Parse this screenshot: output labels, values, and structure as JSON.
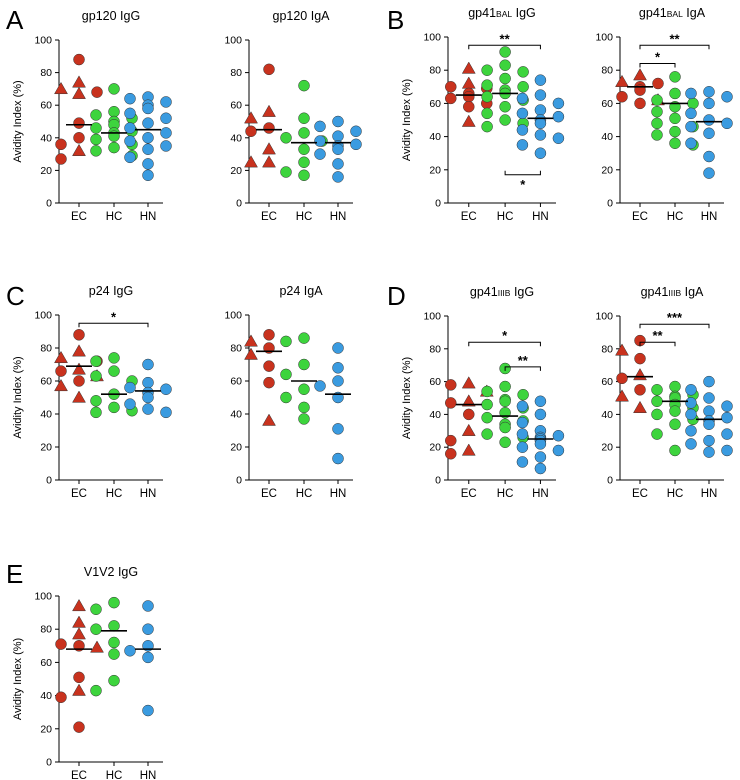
{
  "colors": {
    "EC": "#c8321e",
    "HC": "#3dd43d",
    "HN": "#3a9be0",
    "axis": "#000000",
    "median": "#000000"
  },
  "chart_data": [
    {
      "type": "scatter",
      "panel": "A",
      "title": "gp120 IgG",
      "ylabel": "Avidity Index (%)",
      "ylim": [
        0,
        100
      ],
      "yticks": [
        0,
        20,
        40,
        60,
        80,
        100
      ],
      "categories": [
        "EC",
        "HC",
        "HN"
      ],
      "medians": [
        48,
        43,
        45
      ],
      "groups": [
        {
          "name": "EC",
          "circles": [
            88,
            68,
            49,
            40,
            36,
            27
          ],
          "triangles": [
            74,
            70,
            67,
            32
          ]
        },
        {
          "name": "HC",
          "circles": [
            70,
            56,
            54,
            52,
            50,
            48,
            46,
            44,
            43,
            41,
            39,
            36,
            34,
            32,
            29
          ],
          "triangles": []
        },
        {
          "name": "HN",
          "circles": [
            65,
            64,
            62,
            60,
            58,
            55,
            52,
            49,
            46,
            43,
            40,
            38,
            35,
            33,
            28,
            24,
            17
          ],
          "triangles": []
        }
      ],
      "brackets": []
    },
    {
      "type": "scatter",
      "panel": "A",
      "title": "gp120 IgA",
      "ylabel": "",
      "ylim": [
        0,
        100
      ],
      "yticks": [
        0,
        20,
        40,
        60,
        80,
        100
      ],
      "categories": [
        "EC",
        "HC",
        "HN"
      ],
      "medians": [
        45,
        37,
        37
      ],
      "groups": [
        {
          "name": "EC",
          "circles": [
            82,
            46,
            44
          ],
          "triangles": [
            56,
            52,
            33,
            25,
            25
          ]
        },
        {
          "name": "HC",
          "circles": [
            72,
            52,
            43,
            40,
            38,
            33,
            25,
            19,
            17
          ],
          "triangles": []
        },
        {
          "name": "HN",
          "circles": [
            50,
            47,
            44,
            41,
            38,
            36,
            35,
            33,
            30,
            24,
            16
          ],
          "triangles": []
        }
      ],
      "brackets": []
    },
    {
      "type": "scatter",
      "panel": "B",
      "title": "gp41",
      "title_sub": "BAL",
      "title_suffix": " IgG",
      "ylabel": "Avidity Index (%)",
      "ylim": [
        0,
        100
      ],
      "yticks": [
        0,
        20,
        40,
        60,
        80,
        100
      ],
      "categories": [
        "EC",
        "HC",
        "HN"
      ],
      "medians": [
        65,
        66,
        51
      ],
      "groups": [
        {
          "name": "EC",
          "circles": [
            70,
            69,
            66,
            64,
            63,
            60,
            58
          ],
          "triangles": [
            81,
            72,
            49
          ]
        },
        {
          "name": "HC",
          "circles": [
            91,
            83,
            80,
            79,
            75,
            71,
            70,
            68,
            66,
            64,
            62,
            58,
            54,
            50,
            48,
            46
          ],
          "triangles": []
        },
        {
          "name": "HN",
          "circles": [
            74,
            65,
            63,
            60,
            56,
            54,
            52,
            50,
            48,
            44,
            41,
            39,
            35,
            30
          ],
          "triangles": []
        }
      ],
      "brackets": [
        {
          "from": "EC",
          "to": "HN",
          "label": "**",
          "y": 95,
          "below": false
        },
        {
          "from": "HC",
          "to": "HN",
          "label": "*",
          "y": 17,
          "below": true
        }
      ]
    },
    {
      "type": "scatter",
      "panel": "B",
      "title": "gp41",
      "title_sub": "BAL",
      "title_suffix": " IgA",
      "ylabel": "",
      "ylim": [
        0,
        100
      ],
      "yticks": [
        0,
        20,
        40,
        60,
        80,
        100
      ],
      "categories": [
        "EC",
        "HC",
        "HN"
      ],
      "medians": [
        70,
        60,
        49
      ],
      "groups": [
        {
          "name": "EC",
          "circles": [
            72,
            70,
            68,
            64,
            60
          ],
          "triangles": [
            77,
            73,
            62
          ]
        },
        {
          "name": "HC",
          "circles": [
            76,
            66,
            62,
            60,
            58,
            55,
            51,
            48,
            46,
            43,
            41,
            36,
            35
          ],
          "triangles": []
        },
        {
          "name": "HN",
          "circles": [
            67,
            66,
            64,
            60,
            54,
            50,
            48,
            46,
            42,
            36,
            28,
            18
          ],
          "triangles": []
        }
      ],
      "brackets": [
        {
          "from": "EC",
          "to": "HN",
          "label": "**",
          "y": 95,
          "below": false
        },
        {
          "from": "EC",
          "to": "HC",
          "label": "*",
          "y": 84,
          "below": false
        }
      ]
    },
    {
      "type": "scatter",
      "panel": "C",
      "title": "p24 IgG",
      "ylabel": "Avidity Index (%)",
      "ylim": [
        0,
        100
      ],
      "yticks": [
        0,
        20,
        40,
        60,
        80,
        100
      ],
      "categories": [
        "EC",
        "HC",
        "HN"
      ],
      "medians": [
        69,
        52,
        54
      ],
      "groups": [
        {
          "name": "EC",
          "circles": [
            88,
            72,
            66,
            60
          ],
          "triangles": [
            78,
            74,
            67,
            63,
            57,
            50
          ]
        },
        {
          "name": "HC",
          "circles": [
            74,
            72,
            66,
            63,
            60,
            52,
            48,
            44,
            42,
            41
          ],
          "triangles": []
        },
        {
          "name": "HN",
          "circles": [
            70,
            59,
            56,
            55,
            53,
            50,
            46,
            43,
            41
          ],
          "triangles": []
        }
      ],
      "brackets": [
        {
          "from": "EC",
          "to": "HN",
          "label": "*",
          "y": 95,
          "below": false
        }
      ]
    },
    {
      "type": "scatter",
      "panel": "C",
      "title": "p24 IgA",
      "ylabel": "",
      "ylim": [
        0,
        100
      ],
      "yticks": [
        0,
        20,
        40,
        60,
        80,
        100
      ],
      "categories": [
        "EC",
        "HC",
        "HN"
      ],
      "medians": [
        78,
        60,
        52
      ],
      "groups": [
        {
          "name": "EC",
          "circles": [
            88,
            80,
            69,
            59
          ],
          "triangles": [
            84,
            76,
            36
          ]
        },
        {
          "name": "HC",
          "circles": [
            86,
            84,
            70,
            64,
            55,
            50,
            44,
            37
          ],
          "triangles": []
        },
        {
          "name": "HN",
          "circles": [
            80,
            68,
            60,
            57,
            50,
            31,
            13
          ],
          "triangles": []
        }
      ],
      "brackets": []
    },
    {
      "type": "scatter",
      "panel": "D",
      "title": "gp41",
      "title_sub": "IIIB",
      "title_suffix": " IgG",
      "ylabel": "Avidity Index (%)",
      "ylim": [
        0,
        100
      ],
      "yticks": [
        0,
        20,
        40,
        60,
        80,
        100
      ],
      "categories": [
        "EC",
        "HC",
        "HN"
      ],
      "medians": [
        46,
        39,
        25
      ],
      "groups": [
        {
          "name": "EC",
          "circles": [
            58,
            47,
            40,
            24,
            16
          ],
          "triangles": [
            59,
            54,
            48,
            30,
            18
          ]
        },
        {
          "name": "HC",
          "circles": [
            68,
            57,
            54,
            52,
            49,
            48,
            46,
            44,
            41,
            38,
            36,
            34,
            32,
            28,
            26,
            23
          ],
          "triangles": []
        },
        {
          "name": "HN",
          "circles": [
            48,
            45,
            40,
            35,
            30,
            28,
            27,
            26,
            25,
            24,
            22,
            20,
            18,
            14,
            11,
            7
          ],
          "triangles": []
        }
      ],
      "brackets": [
        {
          "from": "EC",
          "to": "HN",
          "label": "*",
          "y": 84,
          "below": false
        },
        {
          "from": "HC",
          "to": "HN",
          "label": "**",
          "y": 69,
          "below": false
        }
      ]
    },
    {
      "type": "scatter",
      "panel": "D",
      "title": "gp41",
      "title_sub": "IIIB",
      "title_suffix": " IgA",
      "ylabel": "",
      "ylim": [
        0,
        100
      ],
      "yticks": [
        0,
        20,
        40,
        60,
        80,
        100
      ],
      "categories": [
        "EC",
        "HC",
        "HN"
      ],
      "medians": [
        63,
        48,
        37
      ],
      "groups": [
        {
          "name": "EC",
          "circles": [
            85,
            74,
            62,
            55
          ],
          "triangles": [
            79,
            64,
            51,
            44
          ]
        },
        {
          "name": "HC",
          "circles": [
            57,
            55,
            52,
            51,
            50,
            48,
            46,
            44,
            42,
            40,
            37,
            34,
            28,
            18
          ],
          "triangles": []
        },
        {
          "name": "HN",
          "circles": [
            60,
            55,
            50,
            47,
            45,
            42,
            40,
            38,
            36,
            34,
            30,
            28,
            24,
            22,
            18,
            17
          ],
          "triangles": []
        }
      ],
      "brackets": [
        {
          "from": "EC",
          "to": "HN",
          "label": "***",
          "y": 95,
          "below": false
        },
        {
          "from": "EC",
          "to": "HC",
          "label": "**",
          "y": 84,
          "below": false
        }
      ]
    },
    {
      "type": "scatter",
      "panel": "E",
      "title": "V1V2 IgG",
      "ylabel": "Avidity Index (%)",
      "ylim": [
        0,
        100
      ],
      "yticks": [
        0,
        20,
        40,
        60,
        80,
        100
      ],
      "categories": [
        "EC",
        "HC",
        "HN"
      ],
      "medians": [
        68,
        79,
        68
      ],
      "groups": [
        {
          "name": "EC",
          "circles": [
            71,
            70,
            51,
            39,
            21
          ],
          "triangles": [
            94,
            84,
            77,
            69,
            43
          ]
        },
        {
          "name": "HC",
          "circles": [
            96,
            92,
            82,
            80,
            72,
            65,
            49,
            43
          ],
          "triangles": []
        },
        {
          "name": "HN",
          "circles": [
            94,
            80,
            70,
            67,
            63,
            31
          ],
          "triangles": []
        }
      ],
      "brackets": []
    }
  ]
}
